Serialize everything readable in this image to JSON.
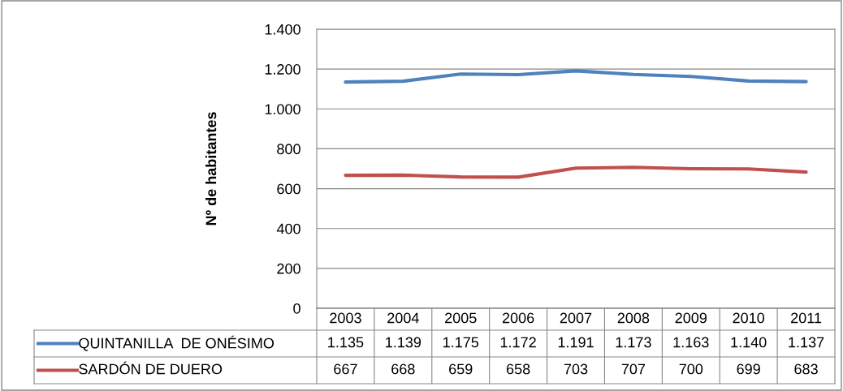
{
  "chart_data": {
    "type": "line",
    "ylabel": "Nº de habitantes",
    "categories": [
      "2003",
      "2004",
      "2005",
      "2006",
      "2007",
      "2008",
      "2009",
      "2010",
      "2011"
    ],
    "series": [
      {
        "name": "QUINTANILLA  DE ONÉSIMO",
        "color": "#4f81bd",
        "values": [
          1135,
          1139,
          1175,
          1172,
          1191,
          1173,
          1163,
          1140,
          1137
        ],
        "value_labels": [
          "1.135",
          "1.139",
          "1.175",
          "1.172",
          "1.191",
          "1.173",
          "1.163",
          "1.140",
          "1.137"
        ]
      },
      {
        "name": "SARDÓN DE DUERO",
        "color": "#c0504d",
        "values": [
          667,
          668,
          659,
          658,
          703,
          707,
          700,
          699,
          683
        ],
        "value_labels": [
          "667",
          "668",
          "659",
          "658",
          "703",
          "707",
          "700",
          "699",
          "683"
        ]
      }
    ],
    "ylim": [
      0,
      1400
    ],
    "yticks": [
      0,
      200,
      400,
      600,
      800,
      {
        "value": 1000,
        "label": "1.000"
      },
      {
        "value": 1200,
        "label": "1.200"
      },
      {
        "value": 1400,
        "label": "1.400"
      }
    ],
    "grid": "y",
    "legend": "bottom",
    "marker": "none",
    "line_style": "solid"
  }
}
